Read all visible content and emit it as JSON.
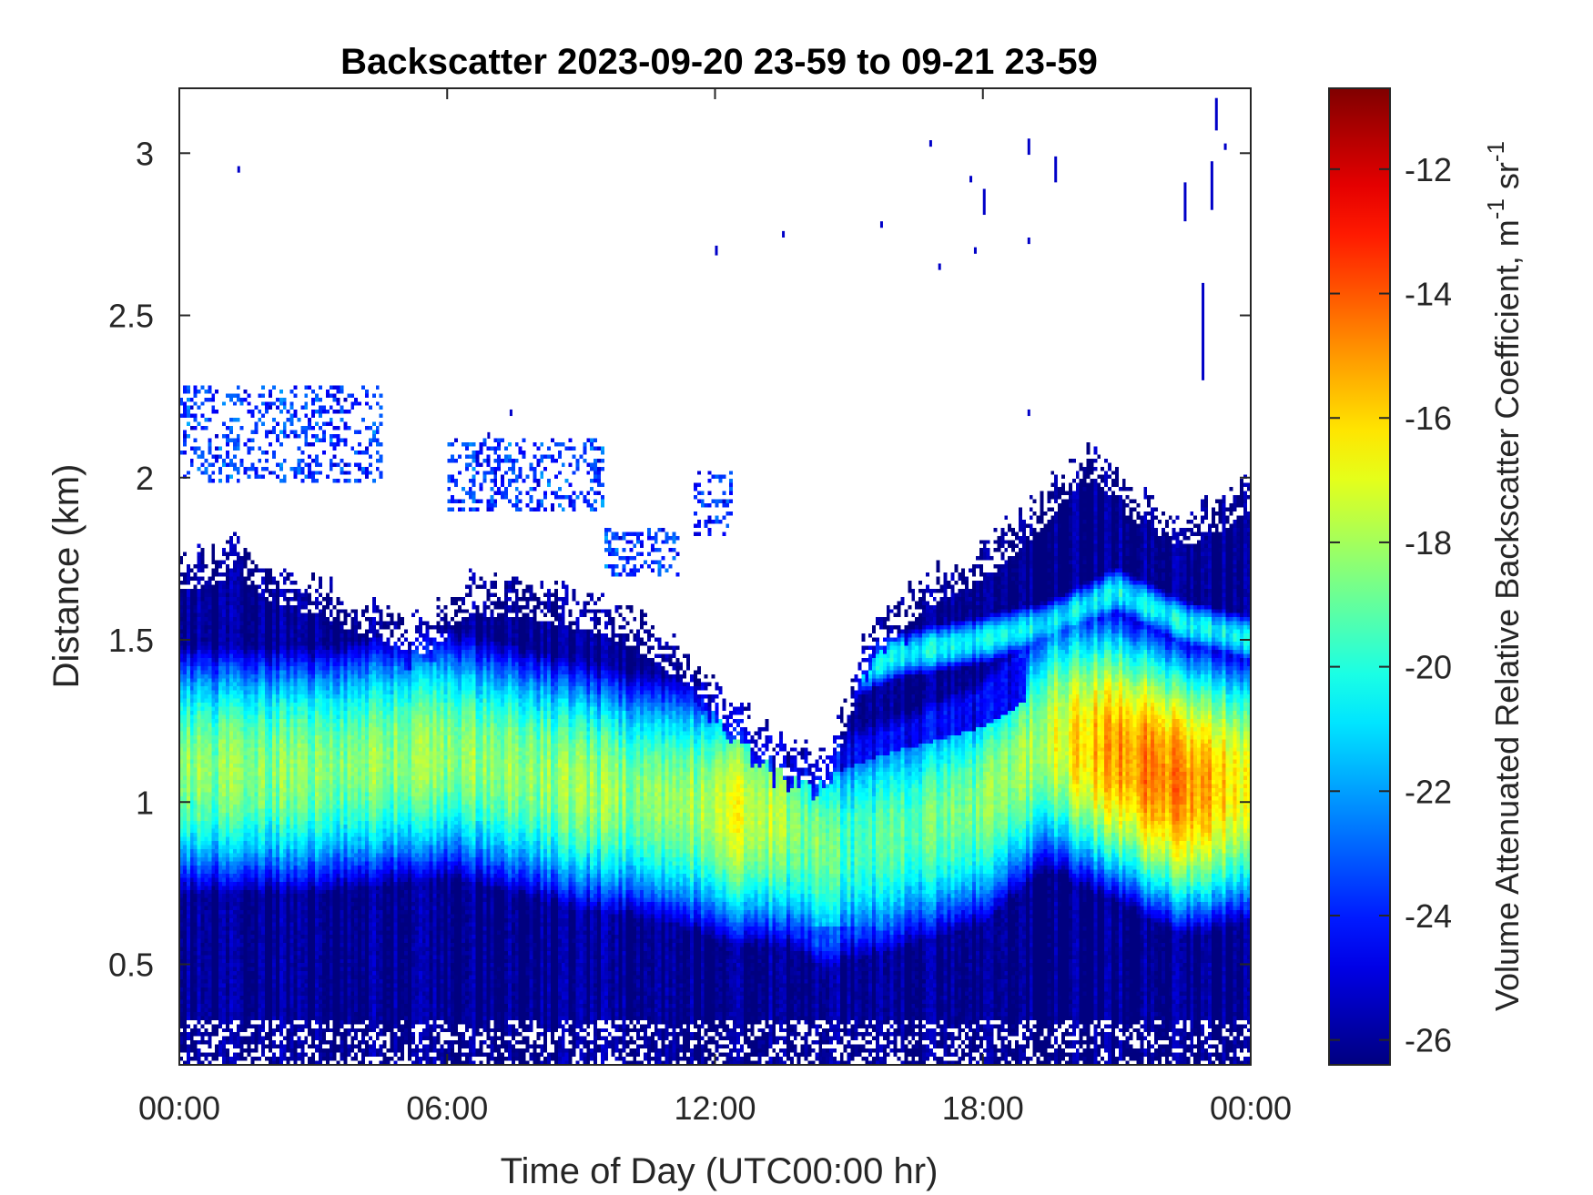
{
  "chart_data": {
    "type": "heatmap",
    "title": "Backscatter 2023-09-20 23-59 to 09-21 23-59",
    "xlabel": "Time of Day (UTC00:00 hr)",
    "ylabel": "Distance (km)",
    "colorbar_label": "Volume Attenuated Relative Backscatter Coefficient, m",
    "colorbar_label_sup1": "-1",
    "colorbar_label_mid": " sr",
    "colorbar_label_sup2": "-1",
    "xlim": [
      0,
      24
    ],
    "ylim": [
      0.19,
      3.2
    ],
    "clim": [
      -26.4,
      -10.7
    ],
    "colormap": "jet",
    "grid": false,
    "x_ticks": [
      {
        "value": 0,
        "label": "00:00"
      },
      {
        "value": 6,
        "label": "06:00"
      },
      {
        "value": 12,
        "label": "12:00"
      },
      {
        "value": 18,
        "label": "18:00"
      },
      {
        "value": 24,
        "label": "00:00"
      }
    ],
    "y_ticks": [
      {
        "value": 0.5,
        "label": "0.5"
      },
      {
        "value": 1,
        "label": "1"
      },
      {
        "value": 1.5,
        "label": "1.5"
      },
      {
        "value": 2,
        "label": "2"
      },
      {
        "value": 2.5,
        "label": "2.5"
      },
      {
        "value": 3,
        "label": "3"
      }
    ],
    "colorbar_ticks": [
      {
        "value": -26,
        "label": "-26"
      },
      {
        "value": -24,
        "label": "-24"
      },
      {
        "value": -22,
        "label": "-22"
      },
      {
        "value": -20,
        "label": "-20"
      },
      {
        "value": -18,
        "label": "-18"
      },
      {
        "value": -16,
        "label": "-16"
      },
      {
        "value": -14,
        "label": "-14"
      },
      {
        "value": -12,
        "label": "-12"
      }
    ],
    "layer_top_km": [
      [
        0,
        1.75
      ],
      [
        1,
        1.78
      ],
      [
        1.3,
        1.86
      ],
      [
        1.6,
        1.75
      ],
      [
        2.5,
        1.7
      ],
      [
        4,
        1.62
      ],
      [
        5.5,
        1.55
      ],
      [
        6.5,
        1.68
      ],
      [
        8,
        1.66
      ],
      [
        9.5,
        1.62
      ],
      [
        10.5,
        1.55
      ],
      [
        11.5,
        1.45
      ],
      [
        12.5,
        1.3
      ],
      [
        13.5,
        1.18
      ],
      [
        14.5,
        1.15
      ],
      [
        15.5,
        1.55
      ],
      [
        17,
        1.72
      ],
      [
        18,
        1.78
      ],
      [
        19,
        1.9
      ],
      [
        20,
        2.05
      ],
      [
        20.5,
        2.1
      ],
      [
        21.5,
        1.95
      ],
      [
        22.5,
        1.88
      ],
      [
        23.5,
        1.95
      ],
      [
        24,
        2.0
      ]
    ],
    "upper_layer_km": [
      {
        "x_start": 0,
        "x_end": 4.6,
        "bottom": 1.98,
        "top": 2.28
      },
      {
        "x_start": 6,
        "x_end": 9.5,
        "bottom": 1.9,
        "top": 2.12
      },
      {
        "x_start": 9.5,
        "x_end": 11.2,
        "bottom": 1.7,
        "top": 1.85
      },
      {
        "x_start": 11.5,
        "x_end": 12.4,
        "bottom": 1.82,
        "top": 2.02
      }
    ],
    "aerosol_peak_km": [
      [
        0,
        1.1
      ],
      [
        3,
        1.1
      ],
      [
        6,
        1.15
      ],
      [
        9,
        1.05
      ],
      [
        12,
        0.98
      ],
      [
        13.5,
        0.95
      ],
      [
        14.5,
        0.85
      ],
      [
        16,
        0.9
      ],
      [
        18,
        1.0
      ],
      [
        19.5,
        1.2
      ],
      [
        21,
        1.15
      ],
      [
        22.5,
        1.05
      ],
      [
        24,
        1.05
      ]
    ],
    "upper_band_km": [
      [
        14.5,
        1.35
      ],
      [
        16,
        1.45
      ],
      [
        18,
        1.5
      ],
      [
        19.5,
        1.55
      ],
      [
        21,
        1.65
      ],
      [
        22.5,
        1.55
      ],
      [
        24,
        1.5
      ]
    ],
    "peak_value_curve": [
      [
        0,
        -18.5
      ],
      [
        3,
        -18.5
      ],
      [
        6,
        -18.3
      ],
      [
        9,
        -18.3
      ],
      [
        11,
        -18.5
      ],
      [
        12.5,
        -17.0
      ],
      [
        14,
        -18.5
      ],
      [
        15,
        -19.5
      ],
      [
        17,
        -19.0
      ],
      [
        19,
        -18.0
      ],
      [
        20.5,
        -15.5
      ],
      [
        22,
        -14.5
      ],
      [
        23.2,
        -15.5
      ],
      [
        24,
        -17.0
      ]
    ]
  }
}
